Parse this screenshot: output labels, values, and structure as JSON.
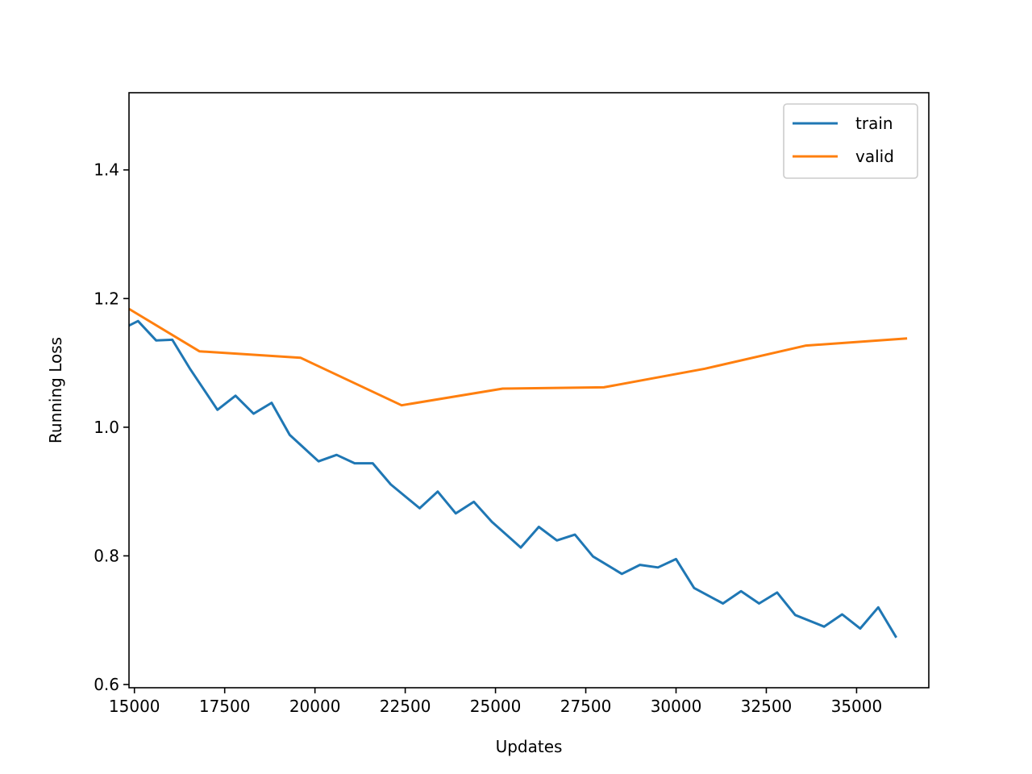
{
  "chart_data": {
    "type": "line",
    "title": "",
    "xlabel": "Updates",
    "ylabel": "Running Loss",
    "xlim": [
      14850,
      37000
    ],
    "ylim": [
      0.595,
      1.52
    ],
    "xticks": [
      15000,
      17500,
      20000,
      22500,
      25000,
      27500,
      30000,
      32500,
      35000
    ],
    "yticks": [
      0.6,
      0.8,
      1.0,
      1.2,
      1.4
    ],
    "ytick_labels": [
      "0.6",
      "0.8",
      "1.0",
      "1.2",
      "1.4"
    ],
    "grid": false,
    "legend_position": "top-right",
    "series": [
      {
        "name": "train",
        "color": "#1f77b4",
        "x": [
          14850,
          15100,
          15600,
          16050,
          16550,
          17300,
          17800,
          18300,
          18800,
          19300,
          20100,
          20600,
          21100,
          21600,
          22100,
          22900,
          23400,
          23900,
          24400,
          24900,
          25700,
          26200,
          26700,
          27200,
          27700,
          28500,
          29000,
          29500,
          30000,
          30500,
          31300,
          31800,
          32300,
          32800,
          33300,
          34100,
          34600,
          35100,
          35600,
          36100
        ],
        "y": [
          1.158,
          1.165,
          1.135,
          1.136,
          1.09,
          1.027,
          1.049,
          1.021,
          1.038,
          0.988,
          0.947,
          0.957,
          0.944,
          0.944,
          0.911,
          0.874,
          0.9,
          0.866,
          0.884,
          0.853,
          0.813,
          0.845,
          0.824,
          0.833,
          0.799,
          0.772,
          0.786,
          0.782,
          0.795,
          0.75,
          0.726,
          0.745,
          0.726,
          0.743,
          0.708,
          0.69,
          0.709,
          0.687,
          0.72,
          0.673
        ]
      },
      {
        "name": "valid",
        "color": "#ff7f0e",
        "x": [
          14850,
          16800,
          19600,
          22400,
          25200,
          28000,
          30800,
          33600,
          36400
        ],
        "y": [
          1.184,
          1.118,
          1.108,
          1.034,
          1.06,
          1.062,
          1.091,
          1.127,
          1.138
        ]
      }
    ]
  }
}
